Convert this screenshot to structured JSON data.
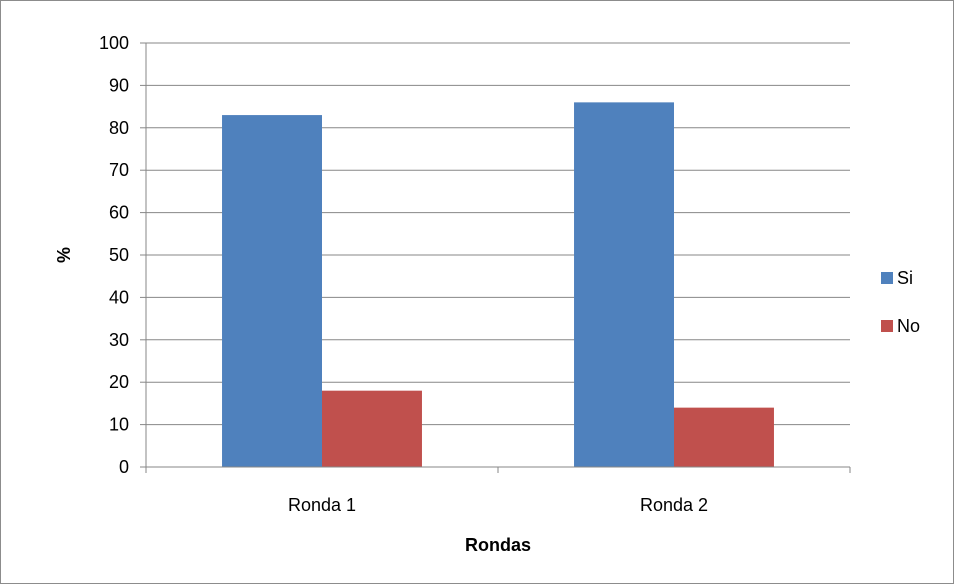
{
  "chart_data": {
    "type": "bar",
    "title": "",
    "xlabel": "Rondas",
    "ylabel": "%",
    "categories": [
      "Ronda 1",
      "Ronda 2"
    ],
    "series": [
      {
        "name": "Si",
        "values": [
          83,
          86
        ],
        "color": "#4f81bd"
      },
      {
        "name": "No",
        "values": [
          18,
          14
        ],
        "color": "#c0504d"
      }
    ],
    "ylim": [
      0,
      100
    ],
    "yticks": [
      0,
      10,
      20,
      30,
      40,
      50,
      60,
      70,
      80,
      90,
      100
    ],
    "grid": true,
    "legend_position": "right"
  }
}
